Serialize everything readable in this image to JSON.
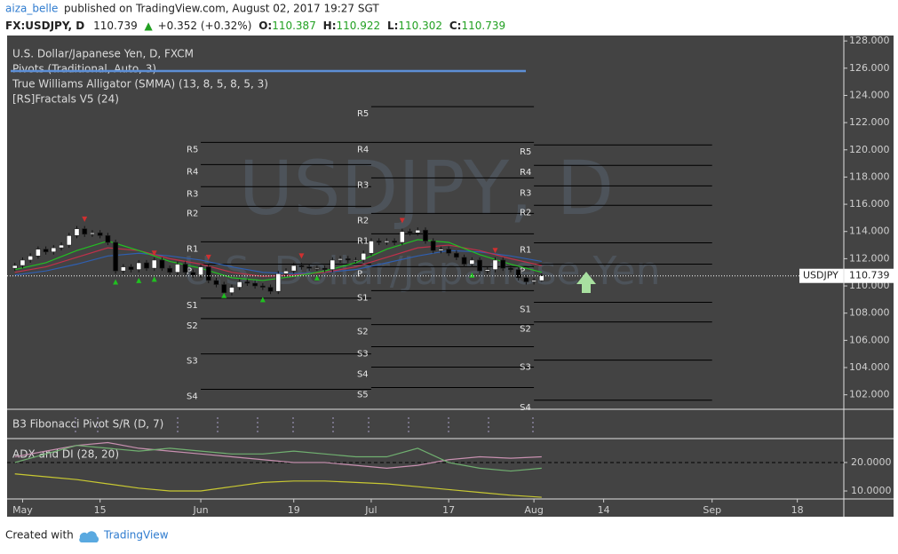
{
  "header": {
    "author": "aiza_belle",
    "published": "published on TradingView.com, August 02, 2017 19:27 SGT",
    "symbol": "FX:USDJPY, D",
    "change_arrow": "▲",
    "change": "+0.352 (+0.32%)",
    "open_label": "O:",
    "high_label": "H:",
    "low_label": "L:",
    "close_label": "C:"
  },
  "legend": [
    "U.S. Dollar/Japanese Yen, D, FXCM",
    "Pivots (Traditional, Auto, 3)",
    "True Williams Alligator (SMMA) (13, 8, 5, 8, 5, 3)",
    "[RS]Fractals V5 (24)"
  ],
  "watermark": {
    "symbol": "USDJPY, D",
    "description": "U.S. Dollar/Japanese Yen"
  },
  "price_label": "USDJPY",
  "fib_pane": {
    "title": "B3 Fibonacci Pivot S/R (D, 7)"
  },
  "footer": {
    "created": "Created with",
    "brand": "TradingView"
  },
  "chart_data": {
    "type": "candlestick",
    "x": [
      -1,
      0,
      1,
      2,
      3,
      4,
      5,
      6,
      7,
      8,
      9,
      10,
      11,
      12,
      13,
      14,
      15,
      16,
      17,
      18,
      19,
      20,
      21,
      22,
      23,
      24,
      25,
      26,
      27,
      28,
      29,
      30,
      31,
      32,
      33,
      34,
      35,
      36,
      37,
      38,
      39,
      40,
      41,
      42,
      43,
      44,
      45,
      46,
      47,
      48,
      49,
      50,
      51,
      52,
      53,
      54,
      55,
      56,
      57,
      58,
      59,
      60,
      61,
      62,
      63,
      64,
      65,
      66,
      67
    ],
    "open": [
      111.3,
      111.5,
      111.9,
      112.2,
      112.7,
      112.5,
      112.8,
      113.0,
      113.7,
      114.2,
      113.8,
      113.9,
      113.7,
      113.2,
      111.1,
      111.4,
      111.2,
      111.7,
      111.3,
      111.9,
      111.3,
      111.0,
      111.6,
      111.0,
      110.8,
      111.4,
      110.4,
      110.1,
      109.5,
      109.9,
      110.3,
      110.2,
      110.0,
      109.9,
      109.6,
      110.9,
      111.1,
      111.5,
      111.4,
      111.3,
      111.3,
      111.2,
      111.9,
      112.0,
      111.9,
      111.9,
      112.4,
      113.3,
      113.2,
      113.3,
      113.2,
      114.0,
      113.9,
      114.1,
      113.3,
      112.6,
      112.7,
      112.4,
      112.1,
      111.6,
      111.9,
      111.1,
      111.2,
      111.9,
      111.3,
      111.2,
      110.6,
      110.3,
      110.387
    ],
    "high": [
      111.7,
      112.1,
      112.4,
      112.9,
      112.9,
      113.0,
      113.2,
      113.9,
      114.4,
      114.4,
      114.1,
      114.1,
      113.9,
      113.4,
      111.6,
      111.6,
      111.9,
      111.9,
      112.1,
      112.1,
      111.5,
      111.8,
      111.8,
      111.2,
      111.6,
      111.6,
      110.6,
      110.3,
      110.1,
      110.5,
      110.5,
      110.4,
      110.2,
      110.1,
      111.1,
      111.3,
      111.7,
      111.7,
      111.6,
      111.5,
      111.5,
      112.1,
      112.2,
      112.2,
      112.1,
      112.6,
      113.5,
      113.5,
      113.5,
      113.5,
      114.2,
      114.2,
      114.3,
      114.3,
      113.5,
      112.9,
      112.9,
      112.6,
      112.3,
      112.1,
      112.1,
      111.4,
      112.1,
      112.1,
      111.5,
      111.4,
      110.8,
      110.6,
      110.922
    ],
    "low": [
      111.1,
      111.3,
      111.7,
      112.0,
      112.3,
      112.3,
      112.6,
      112.8,
      113.5,
      113.6,
      113.6,
      113.5,
      113.0,
      110.9,
      110.9,
      111.0,
      111.0,
      111.1,
      111.1,
      111.1,
      110.8,
      110.8,
      110.8,
      110.6,
      110.6,
      110.2,
      109.9,
      109.3,
      109.3,
      109.7,
      110.0,
      109.8,
      109.7,
      109.4,
      109.4,
      110.7,
      110.9,
      111.2,
      111.1,
      111.1,
      111.0,
      111.0,
      111.7,
      111.7,
      111.7,
      111.7,
      112.2,
      113.0,
      113.0,
      113.0,
      113.0,
      113.7,
      113.7,
      113.1,
      112.4,
      112.4,
      112.2,
      111.9,
      111.4,
      111.4,
      110.9,
      110.9,
      111.0,
      111.1,
      111.0,
      110.4,
      110.1,
      110.1,
      110.302
    ],
    "close": [
      111.5,
      111.9,
      112.2,
      112.7,
      112.5,
      112.8,
      113.0,
      113.7,
      114.2,
      113.8,
      113.9,
      113.7,
      113.2,
      111.1,
      111.4,
      111.2,
      111.7,
      111.3,
      111.9,
      111.3,
      111.0,
      111.6,
      111.0,
      110.8,
      111.4,
      110.4,
      110.1,
      109.5,
      109.9,
      110.3,
      110.2,
      110.0,
      109.9,
      109.6,
      110.9,
      111.1,
      111.5,
      111.4,
      111.3,
      111.3,
      111.2,
      111.9,
      112.0,
      111.9,
      111.9,
      112.4,
      113.3,
      113.2,
      113.3,
      113.2,
      114.0,
      113.9,
      114.1,
      113.3,
      112.6,
      112.7,
      112.4,
      112.1,
      111.6,
      111.9,
      111.1,
      111.2,
      111.9,
      111.3,
      111.2,
      110.6,
      110.3,
      110.4,
      110.739
    ],
    "xlim": [
      -2,
      106
    ],
    "xticks": [
      {
        "value": 0,
        "label": "May"
      },
      {
        "value": 10,
        "label": "15"
      },
      {
        "value": 23,
        "label": "Jun"
      },
      {
        "value": 35,
        "label": "19"
      },
      {
        "value": 45,
        "label": "Jul"
      },
      {
        "value": 55,
        "label": "17"
      },
      {
        "value": 66,
        "label": "Aug"
      },
      {
        "value": 75,
        "label": "14"
      },
      {
        "value": 89,
        "label": "Sep"
      },
      {
        "value": 100,
        "label": "18"
      }
    ],
    "ylim": [
      101,
      128.4
    ],
    "yticks": [
      {
        "value": 102,
        "label": "102.000"
      },
      {
        "value": 104,
        "label": "104.000"
      },
      {
        "value": 106,
        "label": "106.000"
      },
      {
        "value": 108,
        "label": "108.000"
      },
      {
        "value": 110,
        "label": "110.000"
      },
      {
        "value": 112,
        "label": "112.000"
      },
      {
        "value": 114,
        "label": "114.000"
      },
      {
        "value": 116,
        "label": "116.000"
      },
      {
        "value": 118,
        "label": "118.000"
      },
      {
        "value": 120,
        "label": "120.000"
      },
      {
        "value": 122,
        "label": "122.000"
      },
      {
        "value": 124,
        "label": "124.000"
      },
      {
        "value": 126,
        "label": "126.000"
      },
      {
        "value": 128,
        "label": "128.000"
      }
    ],
    "up_color": "#ffffff",
    "down_color": "#000000",
    "background": "#434343",
    "alligator": {
      "x": [
        -1,
        3,
        7,
        11,
        15,
        19,
        23,
        27,
        31,
        35,
        39,
        43,
        47,
        51,
        55,
        59,
        63,
        67
      ],
      "series": [
        {
          "color": "#2f5fb0",
          "values": [
            110.8,
            111.1,
            111.6,
            112.2,
            112.4,
            112.2,
            111.9,
            111.4,
            111.0,
            110.9,
            111.0,
            111.2,
            111.7,
            112.2,
            112.6,
            112.5,
            112.2,
            111.8
          ]
        },
        {
          "color": "#c0304a",
          "values": [
            111.0,
            111.4,
            112.1,
            112.8,
            112.6,
            112.0,
            111.6,
            111.0,
            110.7,
            110.8,
            111.0,
            111.4,
            112.1,
            112.8,
            113.0,
            112.6,
            112.0,
            111.5
          ]
        },
        {
          "color": "#22c022",
          "values": [
            111.2,
            111.7,
            112.6,
            113.3,
            112.6,
            111.8,
            111.3,
            110.6,
            110.4,
            110.7,
            111.1,
            111.7,
            112.7,
            113.4,
            113.2,
            112.3,
            111.6,
            111.0
          ]
        }
      ]
    },
    "fractals": {
      "up_x": [
        8,
        17,
        24,
        36,
        49,
        61
      ],
      "up_y": [
        114.9,
        112.4,
        112.1,
        112.2,
        114.8,
        112.6
      ],
      "down_x": [
        12,
        15,
        17,
        26,
        31,
        38,
        58
      ],
      "down_y": [
        110.3,
        110.4,
        110.5,
        109.3,
        109.0,
        110.6,
        110.8
      ],
      "up_color": "#d03030",
      "down_color": "#20c020"
    },
    "pivots": [
      {
        "start": 23,
        "end": 45,
        "levels": [
          {
            "label": "R5",
            "value": 120.55
          },
          {
            "label": "R4",
            "value": 118.92
          },
          {
            "label": "R3",
            "value": 117.29
          },
          {
            "label": "R2",
            "value": 115.85
          },
          {
            "label": "R1",
            "value": 113.24
          },
          {
            "label": "P",
            "value": 111.6
          },
          {
            "label": "S1",
            "value": 109.1
          },
          {
            "label": "S2",
            "value": 107.6
          },
          {
            "label": "S3",
            "value": 105.0
          },
          {
            "label": "S4",
            "value": 102.4
          }
        ]
      },
      {
        "start": 45,
        "end": 66,
        "levels": [
          {
            "label": "R5",
            "value": 123.17
          },
          {
            "label": "R4",
            "value": 120.55
          },
          {
            "label": "R3",
            "value": 117.94
          },
          {
            "label": "R2",
            "value": 115.33
          },
          {
            "label": "R1",
            "value": 113.83
          },
          {
            "label": "P",
            "value": 111.41
          },
          {
            "label": "S1",
            "value": 109.65
          },
          {
            "label": "S2",
            "value": 107.16
          },
          {
            "label": "S3",
            "value": 105.53
          },
          {
            "label": "S4",
            "value": 104.03
          },
          {
            "label": "S5",
            "value": 102.53
          }
        ]
      },
      {
        "start": 66,
        "end": 89,
        "levels": [
          {
            "label": "R5",
            "value": 120.36
          },
          {
            "label": "R4",
            "value": 118.86
          },
          {
            "label": "R3",
            "value": 117.35
          },
          {
            "label": "R2",
            "value": 115.92
          },
          {
            "label": "R1",
            "value": 113.17
          },
          {
            "label": "P",
            "value": 111.6
          },
          {
            "label": "S1",
            "value": 108.8
          },
          {
            "label": "S2",
            "value": 107.35
          },
          {
            "label": "S3",
            "value": 104.55
          },
          {
            "label": "S4",
            "value": 101.6
          }
        ]
      }
    ],
    "adx": {
      "title": "ADX and DI (28, 20)",
      "x": [
        -1,
        3,
        7,
        11,
        15,
        19,
        23,
        27,
        31,
        35,
        39,
        43,
        47,
        51,
        55,
        59,
        63,
        67
      ],
      "ylim": [
        7.2,
        28.4
      ],
      "yticks": [
        {
          "value": 10,
          "label": "10.0000"
        },
        {
          "value": 20,
          "label": "20.0000"
        }
      ],
      "level": 20,
      "series": [
        {
          "color": "#c8c832",
          "values": [
            16,
            15,
            14,
            12.5,
            11,
            10,
            10,
            11.5,
            13,
            13.5,
            13.5,
            13,
            12.5,
            11.5,
            10.5,
            9.5,
            8.5,
            7.8
          ]
        },
        {
          "color": "#c890b0",
          "values": [
            22,
            24,
            26,
            27,
            25,
            24,
            23,
            22,
            21,
            20,
            20,
            19,
            18,
            19,
            21,
            22,
            21.5,
            22
          ]
        },
        {
          "color": "#70b070",
          "values": [
            20,
            23,
            26,
            25,
            24,
            25,
            24,
            23,
            23,
            24,
            23,
            22,
            22,
            25,
            20,
            18,
            17,
            18
          ]
        }
      ]
    }
  }
}
